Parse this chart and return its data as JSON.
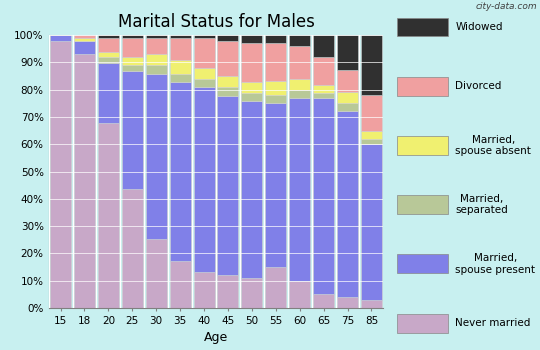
{
  "title": "Marital Status for Males",
  "xlabel": "Age",
  "age_labels": [
    "15",
    "18",
    "20",
    "25",
    "30",
    "35",
    "40",
    "45",
    "50",
    "55",
    "60",
    "65",
    "75",
    "85"
  ],
  "categories": [
    "Never married",
    "Married, spouse present",
    "Married, separated",
    "Married, spouse absent",
    "Divorced",
    "Widowed"
  ],
  "colors": [
    "#c8a8c8",
    "#8080e8",
    "#b8c898",
    "#f0f070",
    "#f0a0a0",
    "#303030"
  ],
  "data": {
    "Never married": [
      97,
      92,
      67,
      43,
      25,
      17,
      13,
      12,
      11,
      15,
      10,
      5,
      4,
      3
    ],
    "Married, spouse present": [
      2,
      5,
      22,
      43,
      60,
      65,
      67,
      65,
      64,
      60,
      67,
      71,
      68,
      57
    ],
    "Married, separated": [
      0,
      0,
      2,
      2,
      3,
      3,
      3,
      3,
      3,
      3,
      3,
      2,
      3,
      2
    ],
    "Married, spouse absent": [
      0,
      1,
      2,
      3,
      4,
      5,
      4,
      4,
      4,
      5,
      4,
      3,
      4,
      3
    ],
    "Divorced": [
      0,
      1,
      5,
      7,
      6,
      8,
      11,
      13,
      14,
      14,
      12,
      10,
      8,
      13
    ],
    "Widowed": [
      0,
      0,
      1,
      1,
      1,
      1,
      1,
      2,
      3,
      3,
      4,
      8,
      13,
      22
    ]
  },
  "background_color": "#c8f0f0",
  "bar_edge_color": "#d0d0d0",
  "watermark": "city-data.com",
  "ytick_labels": [
    "0%",
    "10%",
    "20%",
    "30%",
    "40%",
    "50%",
    "60%",
    "70%",
    "80%",
    "90%",
    "100%"
  ],
  "legend_labels_top_to_bottom": [
    "Widowed",
    "Divorced",
    "Married,\nspouse absent",
    "Married,\nseparated",
    "Married,\nspouse present",
    "Never married"
  ],
  "legend_colors_top_to_bottom": [
    "#303030",
    "#f0a0a0",
    "#f0f070",
    "#b8c898",
    "#8080e8",
    "#c8a8c8"
  ]
}
